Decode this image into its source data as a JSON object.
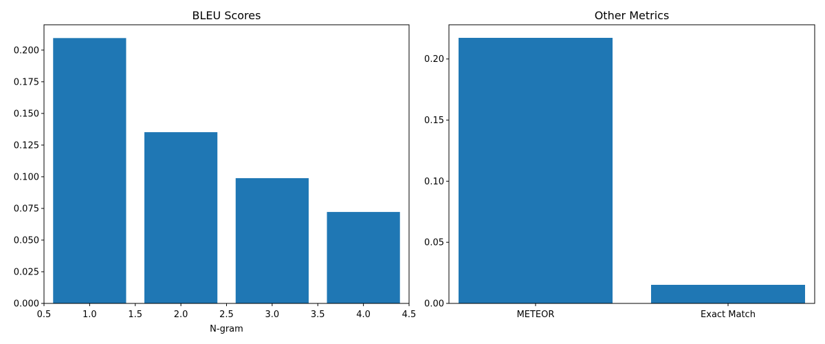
{
  "chart_data": [
    {
      "type": "bar",
      "title": "BLEU Scores",
      "xlabel": "N-gram",
      "ylabel": "",
      "x": [
        1,
        2,
        3,
        4
      ],
      "values": [
        0.2095,
        0.1352,
        0.0989,
        0.0722
      ],
      "bar_width": 0.8,
      "xlim": [
        0.5,
        4.5
      ],
      "ylim": [
        0,
        0.22
      ],
      "xticks": [
        0.5,
        1.0,
        1.5,
        2.0,
        2.5,
        3.0,
        3.5,
        4.0,
        4.5
      ],
      "xtick_labels": [
        "0.5",
        "1.0",
        "1.5",
        "2.0",
        "2.5",
        "3.0",
        "3.5",
        "4.0",
        "4.5"
      ],
      "yticks": [
        0,
        0.025,
        0.05,
        0.075,
        0.1,
        0.125,
        0.15,
        0.175,
        0.2
      ],
      "ytick_labels": [
        "0.000",
        "0.025",
        "0.050",
        "0.075",
        "0.100",
        "0.125",
        "0.150",
        "0.175",
        "0.200"
      ],
      "grid": false,
      "color": "#1f77b4"
    },
    {
      "type": "bar",
      "title": "Other Metrics",
      "xlabel": "",
      "ylabel": "",
      "categories": [
        "METEOR",
        "Exact Match"
      ],
      "values": [
        0.2173,
        0.0152
      ],
      "bar_width": 0.8,
      "ylim": [
        0,
        0.228
      ],
      "yticks": [
        0,
        0.05,
        0.1,
        0.15,
        0.2
      ],
      "ytick_labels": [
        "0.00",
        "0.05",
        "0.10",
        "0.15",
        "0.20"
      ],
      "grid": false,
      "color": "#1f77b4"
    }
  ]
}
